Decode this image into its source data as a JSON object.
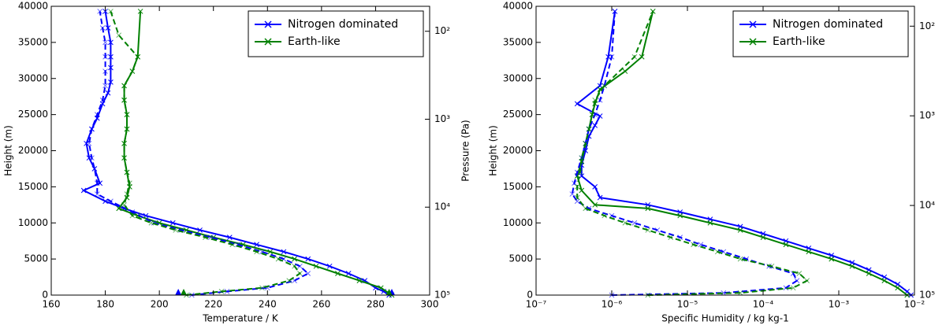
{
  "chart_data": [
    {
      "type": "line",
      "xlabel": "Temperature / K",
      "ylabel": "Height (m)",
      "y2label": "Pressure (Pa)",
      "xlim": [
        160,
        300
      ],
      "xticks": [
        160,
        180,
        200,
        220,
        240,
        260,
        280,
        300
      ],
      "ylim": [
        0,
        40000
      ],
      "yticks": [
        0,
        5000,
        10000,
        15000,
        20000,
        25000,
        30000,
        35000,
        40000
      ],
      "y2scale": "log",
      "y2lim": [
        100000,
        52
      ],
      "y2ticks": [
        {
          "value": 100,
          "label": "10²"
        },
        {
          "value": 1000,
          "label": "10³"
        },
        {
          "value": 10000,
          "label": "10⁴"
        },
        {
          "value": 100000,
          "label": "10⁵"
        }
      ],
      "legend": "upper right",
      "series": [
        {
          "name": "Nitrogen dominated",
          "color": "#0000ff",
          "style": "solid",
          "marker": "x",
          "x": [
            285,
            283,
            280,
            276,
            270,
            263,
            255,
            246,
            236,
            226,
            215,
            205,
            195,
            187,
            180,
            172,
            178,
            176,
            174,
            173,
            175,
            177,
            179,
            181,
            182,
            182,
            182,
            182,
            181,
            180
          ],
          "y": [
            0,
            500,
            1000,
            2000,
            3000,
            4000,
            5000,
            6000,
            7000,
            8000,
            9000,
            10000,
            11000,
            12000,
            13000,
            14500,
            15500,
            17500,
            19000,
            21000,
            23000,
            24500,
            26500,
            28000,
            29500,
            31500,
            33000,
            35000,
            37000,
            39300
          ]
        },
        {
          "name": "Earth-like",
          "color": "#008000",
          "style": "solid",
          "marker": "x",
          "x": [
            286,
            282,
            274,
            266,
            258,
            250,
            241,
            231,
            220,
            210,
            200,
            192,
            185,
            188,
            189,
            188,
            187,
            187,
            188,
            188,
            187,
            187,
            190,
            192,
            193
          ],
          "y": [
            0,
            1000,
            2000,
            3000,
            4000,
            5000,
            6000,
            7000,
            8000,
            9000,
            10000,
            11000,
            12000,
            13500,
            15000,
            17000,
            19000,
            21000,
            23000,
            25000,
            27000,
            29000,
            31000,
            33000,
            39300
          ]
        },
        {
          "color": "#0000ff",
          "style": "dashed",
          "marker": "x",
          "x": [
            212,
            225,
            240,
            250,
            255,
            252,
            246,
            238,
            229,
            219,
            208,
            198,
            190,
            182,
            177,
            177,
            176,
            175,
            174,
            175,
            177,
            179,
            180,
            180,
            180,
            180,
            179,
            178
          ],
          "y": [
            0,
            500,
            1000,
            2000,
            3000,
            4000,
            5000,
            6000,
            7000,
            8000,
            9000,
            10000,
            11500,
            13000,
            14000,
            15500,
            17500,
            19000,
            21000,
            23000,
            25000,
            27000,
            29000,
            31000,
            33000,
            35000,
            37000,
            39300
          ]
        },
        {
          "color": "#008000",
          "style": "dashed",
          "marker": "x",
          "x": [
            210,
            223,
            238,
            248,
            252,
            250,
            244,
            236,
            227,
            217,
            206,
            197,
            190,
            187,
            188,
            189,
            188,
            187,
            187,
            188,
            188,
            187,
            187,
            190,
            192,
            185,
            182
          ],
          "y": [
            0,
            500,
            1000,
            2000,
            3000,
            4000,
            5000,
            6000,
            7000,
            8000,
            9000,
            10000,
            11000,
            12500,
            14000,
            15500,
            17000,
            19000,
            21000,
            23000,
            25000,
            27000,
            29000,
            31000,
            33000,
            36000,
            39300
          ]
        },
        {
          "color": "#0000ff",
          "style": "none",
          "marker": "triangle",
          "x": [
            207,
            286
          ],
          "y": [
            0,
            0
          ]
        },
        {
          "color": "#008000",
          "style": "none",
          "marker": "triangle",
          "x": [
            209,
            285
          ],
          "y": [
            0,
            0
          ]
        }
      ]
    },
    {
      "type": "line",
      "xlabel": "Specific Humidity / kg kg-1",
      "ylabel": "Height (m)",
      "y2label": "Pressure (Pa)",
      "xscale": "log",
      "xlim": [
        1e-07,
        0.01
      ],
      "xticks": [
        {
          "value": 1e-07,
          "label": "10⁻⁷"
        },
        {
          "value": 1e-06,
          "label": "10⁻⁶"
        },
        {
          "value": 1e-05,
          "label": "10⁻⁵"
        },
        {
          "value": 0.0001,
          "label": "10⁻⁴"
        },
        {
          "value": 0.001,
          "label": "10⁻³"
        },
        {
          "value": 0.01,
          "label": "10⁻²"
        }
      ],
      "ylim": [
        0,
        40000
      ],
      "yticks": [
        0,
        5000,
        10000,
        15000,
        20000,
        25000,
        30000,
        35000,
        40000
      ],
      "y2scale": "log",
      "y2lim": [
        100000,
        60
      ],
      "y2ticks": [
        {
          "value": 100,
          "label": "10²"
        },
        {
          "value": 1000,
          "label": "10³"
        },
        {
          "value": 10000,
          "label": "10⁴"
        },
        {
          "value": 100000,
          "label": "10⁵"
        }
      ],
      "legend": "upper right",
      "series": [
        {
          "name": "Nitrogen dominated",
          "color": "#0000ff",
          "style": "solid",
          "marker": "x",
          "x": [
            0.009,
            0.008,
            0.006,
            0.004,
            0.0025,
            0.0015,
            0.0008,
            0.0004,
            0.0002,
            0.0001,
            5e-05,
            2e-05,
            8e-06,
            3e-06,
            7e-07,
            6e-07,
            4e-07,
            4e-07,
            4.5e-07,
            5e-07,
            6e-07,
            7e-07,
            3.5e-07,
            7e-07,
            9e-07,
            1.1e-06
          ],
          "y": [
            0,
            500,
            1500,
            2500,
            3500,
            4500,
            5500,
            6500,
            7500,
            8500,
            9500,
            10500,
            11500,
            12500,
            13500,
            15000,
            16500,
            18000,
            20000,
            22000,
            23500,
            24800,
            26500,
            29000,
            33000,
            39300
          ]
        },
        {
          "name": "Earth-like",
          "color": "#008000",
          "style": "solid",
          "marker": "x",
          "x": [
            0.008,
            0.006,
            0.004,
            0.0025,
            0.0015,
            0.0008,
            0.0004,
            0.0002,
            0.0001,
            5e-05,
            2e-05,
            8e-06,
            3e-06,
            6e-07,
            4e-07,
            3.5e-07,
            4e-07,
            4.5e-07,
            5e-07,
            5.5e-07,
            6e-07,
            7e-07,
            1.5e-06,
            2.5e-06,
            3.5e-06
          ],
          "y": [
            0,
            1000,
            2000,
            3000,
            4000,
            5000,
            6000,
            7000,
            8000,
            9000,
            10000,
            11000,
            12000,
            12500,
            14500,
            16500,
            18500,
            21000,
            23000,
            25000,
            26500,
            28500,
            31000,
            33000,
            39300
          ]
        },
        {
          "color": "#0000ff",
          "style": "dashed",
          "marker": "x",
          "x": [
            1e-06,
            3e-05,
            0.0002,
            0.00028,
            0.00025,
            0.00012,
            6e-05,
            3e-05,
            1.5e-05,
            8e-06,
            4e-06,
            2e-06,
            1e-06,
            5e-07,
            3.5e-07,
            3e-07,
            3.2e-07,
            3.5e-07,
            4e-07,
            4.5e-07,
            5e-07,
            6e-07,
            7e-07,
            8e-07,
            1e-06,
            1.1e-06
          ],
          "y": [
            0,
            300,
            1000,
            2000,
            3000,
            4000,
            5000,
            6000,
            7000,
            8000,
            9000,
            10000,
            11000,
            12000,
            13000,
            14000,
            15500,
            17000,
            19000,
            21000,
            23000,
            25000,
            27000,
            29000,
            33000,
            39300
          ]
        },
        {
          "color": "#008000",
          "style": "dashed",
          "marker": "x",
          "x": [
            3e-06,
            5e-05,
            0.00025,
            0.00038,
            0.0003,
            0.00013,
            5e-05,
            2.5e-05,
            1.2e-05,
            6e-06,
            3e-06,
            1.5e-06,
            8e-07,
            4.5e-07,
            3.5e-07,
            3.5e-07,
            3.8e-07,
            4e-07,
            4.5e-07,
            5e-07,
            5.5e-07,
            6e-07,
            8e-07,
            2e-06,
            3.5e-06
          ],
          "y": [
            0,
            300,
            1000,
            2000,
            3000,
            4000,
            5000,
            6000,
            7000,
            8000,
            9000,
            10000,
            11000,
            12000,
            13500,
            15000,
            17000,
            19000,
            21000,
            23000,
            25000,
            27000,
            29000,
            33000,
            39300
          ]
        }
      ]
    }
  ]
}
